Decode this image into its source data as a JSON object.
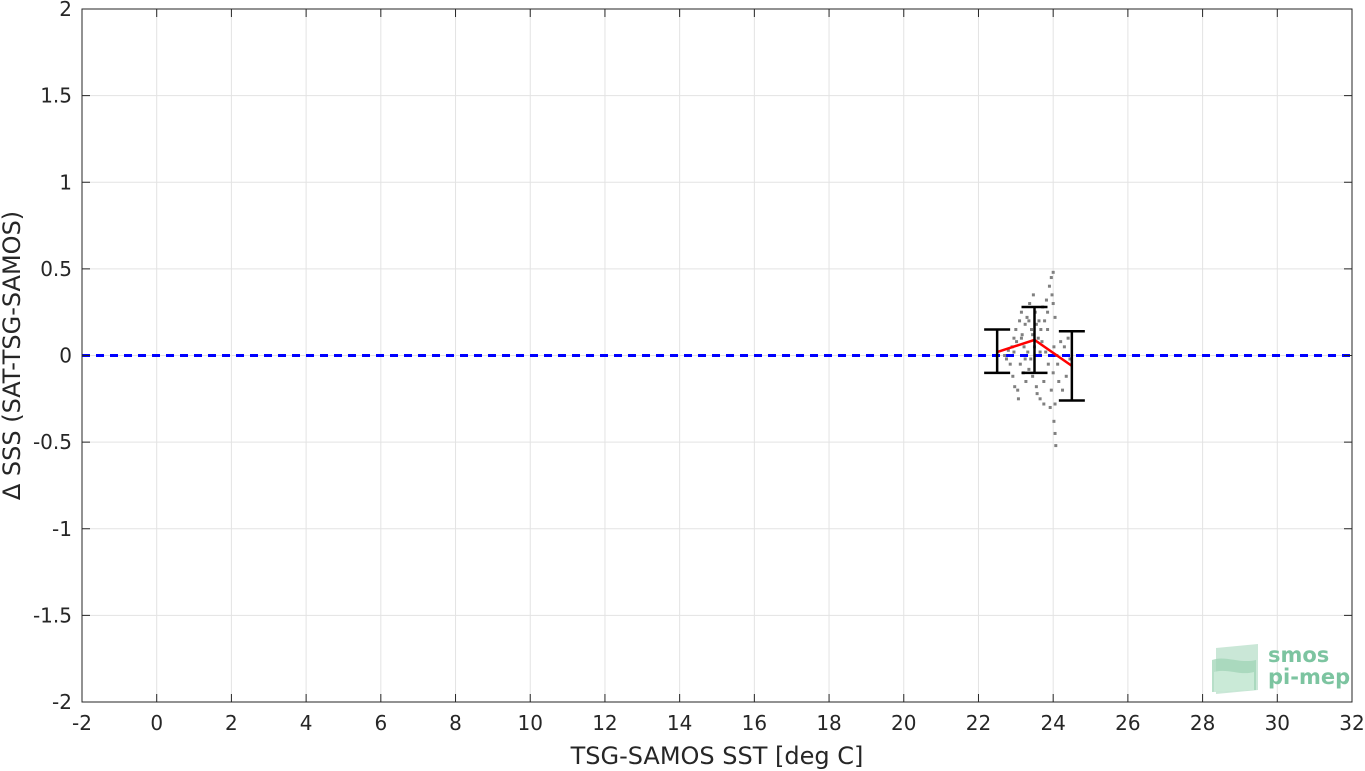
{
  "chart_data": {
    "type": "scatter",
    "title": "",
    "xlabel": "TSG-SAMOS SST [deg C]",
    "ylabel": "Δ SSS (SAT-TSG-SAMOS)",
    "xlim": [
      -2,
      32
    ],
    "ylim": [
      -2,
      2
    ],
    "x_ticks": [
      -2,
      0,
      2,
      4,
      6,
      8,
      10,
      12,
      14,
      16,
      18,
      20,
      22,
      24,
      26,
      28,
      30,
      32
    ],
    "x_tick_labels": [
      "-2",
      "0",
      "2",
      "4",
      "6",
      "8",
      "10",
      "12",
      "14",
      "16",
      "18",
      "20",
      "22",
      "24",
      "26",
      "28",
      "30",
      "32"
    ],
    "y_ticks": [
      2,
      1.5,
      1,
      0.5,
      0,
      -0.5,
      -1,
      -1.5,
      -2
    ],
    "y_tick_labels": [
      "2",
      "1.5",
      "1",
      "0.5",
      "0",
      "-0.5",
      "-1",
      "-1.5",
      "-2"
    ],
    "grid": true,
    "reference_line": {
      "y": 0,
      "style": "dashed",
      "color": "#0000ff"
    },
    "binned_mean": {
      "color": "#ff0000",
      "x": [
        22.5,
        23.5,
        24.5
      ],
      "mean": [
        0.02,
        0.09,
        -0.06
      ],
      "err_low": [
        -0.1,
        -0.1,
        -0.26
      ],
      "err_high": [
        0.15,
        0.28,
        0.14
      ]
    },
    "scatter_color": "#808080",
    "scatter_points": [
      [
        22.7,
        0.0
      ],
      [
        22.75,
        -0.02
      ],
      [
        22.8,
        0.03
      ],
      [
        22.85,
        -0.05
      ],
      [
        22.9,
        0.05
      ],
      [
        22.92,
        -0.12
      ],
      [
        22.95,
        0.1
      ],
      [
        22.97,
        -0.18
      ],
      [
        23.0,
        0.15
      ],
      [
        23.02,
        0.08
      ],
      [
        23.05,
        -0.2
      ],
      [
        23.07,
        -0.25
      ],
      [
        23.1,
        0.2
      ],
      [
        23.12,
        -0.05
      ],
      [
        23.15,
        0.25
      ],
      [
        23.17,
        0.12
      ],
      [
        23.2,
        -0.1
      ],
      [
        23.22,
        0.05
      ],
      [
        23.25,
        0.18
      ],
      [
        23.27,
        -0.15
      ],
      [
        23.3,
        0.22
      ],
      [
        23.32,
        0.02
      ],
      [
        23.35,
        -0.08
      ],
      [
        23.37,
        0.3
      ],
      [
        23.4,
        -0.02
      ],
      [
        23.42,
        0.15
      ],
      [
        23.45,
        -0.12
      ],
      [
        23.47,
        0.35
      ],
      [
        23.5,
        0.05
      ],
      [
        23.52,
        0.25
      ],
      [
        23.55,
        -0.18
      ],
      [
        23.57,
        -0.22
      ],
      [
        23.6,
        0.1
      ],
      [
        23.62,
        0.2
      ],
      [
        23.65,
        -0.25
      ],
      [
        23.67,
        0.15
      ],
      [
        23.7,
        0.08
      ],
      [
        23.72,
        0.28
      ],
      [
        23.75,
        -0.28
      ],
      [
        23.77,
        0.2
      ],
      [
        23.8,
        0.02
      ],
      [
        23.82,
        0.32
      ],
      [
        23.85,
        0.15
      ],
      [
        23.87,
        -0.05
      ],
      [
        23.9,
        0.4
      ],
      [
        23.92,
        -0.3
      ],
      [
        23.95,
        0.45
      ],
      [
        23.97,
        0.35
      ],
      [
        24.0,
        0.48
      ],
      [
        24.0,
        -0.1
      ],
      [
        24.02,
        0.05
      ],
      [
        24.02,
        -0.38
      ],
      [
        24.05,
        -0.45
      ],
      [
        24.05,
        0.22
      ],
      [
        24.07,
        -0.52
      ],
      [
        24.1,
        0.0
      ],
      [
        24.12,
        -0.05
      ],
      [
        24.15,
        -0.15
      ],
      [
        24.2,
        0.08
      ],
      [
        24.25,
        -0.2
      ],
      [
        24.3,
        0.05
      ],
      [
        24.35,
        -0.12
      ],
      [
        24.4,
        0.1
      ],
      [
        24.45,
        -0.02
      ],
      [
        23.45,
        0.12
      ],
      [
        23.55,
        0.18
      ],
      [
        23.65,
        0.02
      ],
      [
        23.25,
        -0.02
      ],
      [
        23.15,
        0.1
      ],
      [
        22.95,
        0.02
      ],
      [
        23.85,
        0.25
      ],
      [
        23.95,
        -0.2
      ],
      [
        24.0,
        0.3
      ],
      [
        24.05,
        -0.28
      ],
      [
        23.35,
        0.2
      ],
      [
        23.75,
        -0.15
      ]
    ]
  },
  "logo": {
    "line1": "smos",
    "line2": "pi-mep",
    "text_color": "#7cc4a0",
    "shape_color": "#9fd4b6"
  }
}
